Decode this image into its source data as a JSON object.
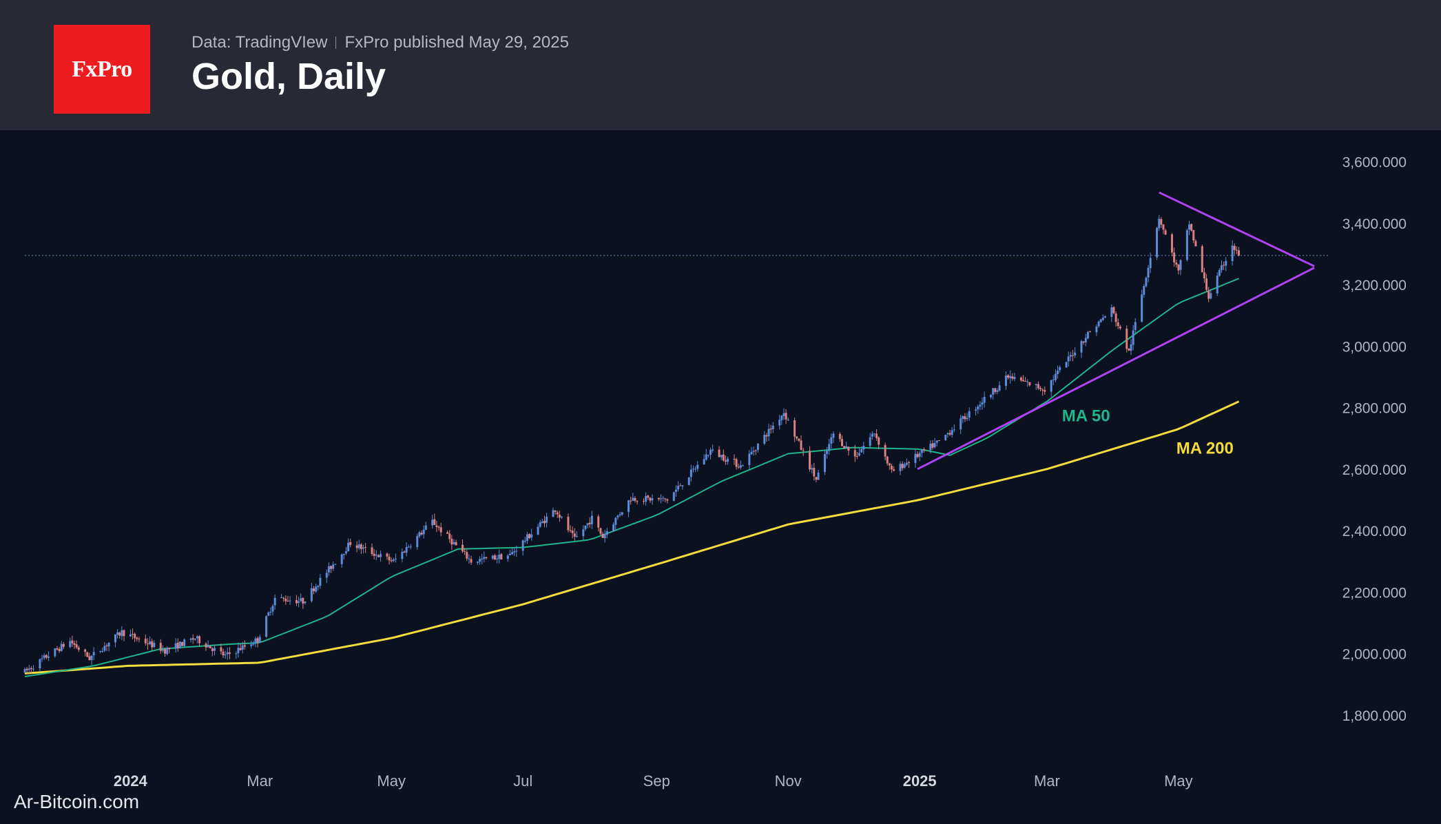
{
  "header": {
    "logo_text": "FxPro",
    "source_text": "Data: TradingVIew",
    "publisher_text": "FxPro published May 29, 2025",
    "title": "Gold, Daily"
  },
  "watermark": "Ar-Bitcoin.com",
  "chart_data": {
    "type": "candlestick",
    "title": "Gold, Daily",
    "x_range": [
      "2023-11-13",
      "2025-07-10"
    ],
    "ylim": [
      1730,
      3680
    ],
    "y_ticks": [
      1800,
      2000,
      2200,
      2400,
      2600,
      2800,
      3000,
      3200,
      3400,
      3600
    ],
    "y_tick_labels": [
      "1,800.000",
      "2,000.000",
      "2,200.000",
      "2,400.000",
      "2,600.000",
      "2,800.000",
      "3,000.000",
      "3,200.000",
      "3,400.000",
      "3,600.000"
    ],
    "x_ticks": [
      {
        "date": "2024-01-01",
        "label": "2024",
        "bold": true
      },
      {
        "date": "2024-03-01",
        "label": "Mar",
        "bold": false
      },
      {
        "date": "2024-05-01",
        "label": "May",
        "bold": false
      },
      {
        "date": "2024-07-01",
        "label": "Jul",
        "bold": false
      },
      {
        "date": "2024-09-01",
        "label": "Sep",
        "bold": false
      },
      {
        "date": "2024-11-01",
        "label": "Nov",
        "bold": false
      },
      {
        "date": "2025-01-01",
        "label": "2025",
        "bold": true
      },
      {
        "date": "2025-03-01",
        "label": "Mar",
        "bold": false
      },
      {
        "date": "2025-05-01",
        "label": "May",
        "bold": false
      }
    ],
    "price_path": [
      [
        "2023-11-13",
        1940
      ],
      [
        "2023-11-24",
        1995
      ],
      [
        "2023-12-04",
        2040
      ],
      [
        "2023-12-13",
        1985
      ],
      [
        "2023-12-28",
        2070
      ],
      [
        "2024-01-17",
        2010
      ],
      [
        "2024-01-31",
        2050
      ],
      [
        "2024-02-14",
        1992
      ],
      [
        "2024-02-29",
        2045
      ],
      [
        "2024-03-08",
        2180
      ],
      [
        "2024-03-21",
        2170
      ],
      [
        "2024-04-12",
        2360
      ],
      [
        "2024-04-23",
        2325
      ],
      [
        "2024-05-02",
        2300
      ],
      [
        "2024-05-20",
        2430
      ],
      [
        "2024-06-07",
        2300
      ],
      [
        "2024-06-25",
        2320
      ],
      [
        "2024-07-16",
        2470
      ],
      [
        "2024-07-25",
        2370
      ],
      [
        "2024-08-02",
        2440
      ],
      [
        "2024-08-07",
        2380
      ],
      [
        "2024-08-20",
        2505
      ],
      [
        "2024-09-06",
        2500
      ],
      [
        "2024-09-26",
        2660
      ],
      [
        "2024-10-10",
        2610
      ],
      [
        "2024-10-30",
        2785
      ],
      [
        "2024-11-14",
        2565
      ],
      [
        "2024-11-22",
        2715
      ],
      [
        "2024-12-02",
        2640
      ],
      [
        "2024-12-11",
        2720
      ],
      [
        "2024-12-19",
        2590
      ],
      [
        "2025-01-10",
        2690
      ],
      [
        "2025-02-11",
        2900
      ],
      [
        "2025-02-28",
        2860
      ],
      [
        "2025-03-20",
        3040
      ],
      [
        "2025-03-31",
        3120
      ],
      [
        "2025-04-08",
        2980
      ],
      [
        "2025-04-22",
        3420
      ],
      [
        "2025-05-01",
        3240
      ],
      [
        "2025-05-06",
        3400
      ],
      [
        "2025-05-15",
        3160
      ],
      [
        "2025-05-26",
        3330
      ],
      [
        "2025-05-29",
        3290
      ]
    ],
    "last_price": 3295,
    "series": [
      {
        "name": "MA 50",
        "color": "#1fb58a",
        "points": [
          [
            "2023-11-13",
            1925
          ],
          [
            "2023-12-15",
            1960
          ],
          [
            "2024-01-15",
            2015
          ],
          [
            "2024-02-15",
            2030
          ],
          [
            "2024-03-01",
            2035
          ],
          [
            "2024-04-01",
            2120
          ],
          [
            "2024-05-01",
            2250
          ],
          [
            "2024-06-01",
            2340
          ],
          [
            "2024-07-01",
            2345
          ],
          [
            "2024-08-01",
            2370
          ],
          [
            "2024-09-01",
            2450
          ],
          [
            "2024-10-01",
            2560
          ],
          [
            "2024-11-01",
            2650
          ],
          [
            "2024-12-01",
            2670
          ],
          [
            "2025-01-01",
            2665
          ],
          [
            "2025-01-15",
            2645
          ],
          [
            "2025-02-01",
            2700
          ],
          [
            "2025-03-01",
            2820
          ],
          [
            "2025-04-01",
            2990
          ],
          [
            "2025-05-01",
            3140
          ],
          [
            "2025-05-29",
            3220
          ]
        ]
      },
      {
        "name": "MA 200",
        "color": "#f2dd3c",
        "points": [
          [
            "2023-11-13",
            1935
          ],
          [
            "2023-12-31",
            1960
          ],
          [
            "2024-03-01",
            1970
          ],
          [
            "2024-05-01",
            2050
          ],
          [
            "2024-07-01",
            2160
          ],
          [
            "2024-09-01",
            2290
          ],
          [
            "2024-11-01",
            2420
          ],
          [
            "2025-01-01",
            2500
          ],
          [
            "2025-03-01",
            2600
          ],
          [
            "2025-05-01",
            2730
          ],
          [
            "2025-05-29",
            2820
          ]
        ]
      }
    ],
    "trendlines": [
      {
        "role": "support",
        "color": "#b042f5",
        "from": [
          "2024-12-31",
          2600
        ],
        "to": [
          "2025-07-03",
          3255
        ]
      },
      {
        "role": "resistance",
        "color": "#b042f5",
        "from": [
          "2025-04-22",
          3500
        ],
        "to": [
          "2025-07-03",
          3260
        ]
      }
    ],
    "annotations": [
      {
        "text": "MA 50",
        "color": "#1fb58a",
        "x": "2025-03-08",
        "y": 2755
      },
      {
        "text": "MA 200",
        "color": "#f2dd3c",
        "x": "2025-04-30",
        "y": 2650
      }
    ],
    "colors": {
      "up": "#5b8bd9",
      "down": "#d98080",
      "background": "#0b111e",
      "axis_text": "#b2b5be",
      "last_price_line": "#4f6fa6"
    }
  }
}
